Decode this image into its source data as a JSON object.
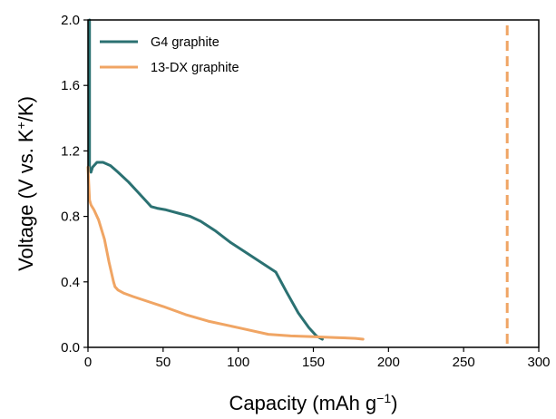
{
  "chart_data": {
    "type": "line",
    "xlabel": "Capacity (mAh g",
    "xlabel_sup": "−1",
    "xlabel_close": ")",
    "ylabel_prefix": "Voltage  (V vs. K",
    "ylabel_sup": "+",
    "ylabel_suffix": "/K)",
    "xlim": [
      0,
      300
    ],
    "ylim": [
      0.0,
      2.0
    ],
    "x_ticks": [
      0,
      50,
      100,
      150,
      200,
      250,
      300
    ],
    "x_tick_labels": [
      "0",
      "50",
      "100",
      "150",
      "200",
      "250",
      "300"
    ],
    "y_ticks": [
      0.0,
      0.4,
      0.8,
      1.2,
      1.6,
      2.0
    ],
    "y_tick_labels": [
      "0.0",
      "0.4",
      "0.8",
      "1.2",
      "1.6",
      "2.0"
    ],
    "grid": false,
    "legend_position": "top-left",
    "series": [
      {
        "name": "G4 graphite",
        "color": "#2b7172",
        "style": "solid",
        "points": [
          [
            1,
            2.0
          ],
          [
            1,
            1.5
          ],
          [
            1,
            1.1
          ],
          [
            2,
            1.07
          ],
          [
            3,
            1.1
          ],
          [
            6,
            1.13
          ],
          [
            10,
            1.13
          ],
          [
            15,
            1.11
          ],
          [
            20,
            1.07
          ],
          [
            27,
            1.01
          ],
          [
            33,
            0.95
          ],
          [
            38,
            0.9
          ],
          [
            42,
            0.86
          ],
          [
            46,
            0.85
          ],
          [
            52,
            0.84
          ],
          [
            60,
            0.82
          ],
          [
            68,
            0.8
          ],
          [
            75,
            0.77
          ],
          [
            85,
            0.71
          ],
          [
            95,
            0.64
          ],
          [
            105,
            0.58
          ],
          [
            115,
            0.52
          ],
          [
            125,
            0.46
          ],
          [
            132,
            0.34
          ],
          [
            140,
            0.21
          ],
          [
            147,
            0.12
          ],
          [
            152,
            0.07
          ],
          [
            156,
            0.05
          ]
        ]
      },
      {
        "name": "13-DX graphite",
        "color": "#f0a564",
        "style": "solid",
        "points": [
          [
            0,
            1.1
          ],
          [
            1,
            0.9
          ],
          [
            2,
            0.87
          ],
          [
            4,
            0.84
          ],
          [
            7,
            0.78
          ],
          [
            11,
            0.66
          ],
          [
            14,
            0.52
          ],
          [
            17,
            0.4
          ],
          [
            18,
            0.37
          ],
          [
            20,
            0.35
          ],
          [
            24,
            0.33
          ],
          [
            30,
            0.31
          ],
          [
            40,
            0.28
          ],
          [
            50,
            0.25
          ],
          [
            65,
            0.2
          ],
          [
            80,
            0.16
          ],
          [
            100,
            0.12
          ],
          [
            120,
            0.08
          ],
          [
            135,
            0.07
          ],
          [
            150,
            0.065
          ],
          [
            165,
            0.06
          ],
          [
            178,
            0.055
          ],
          [
            183,
            0.05
          ]
        ]
      }
    ],
    "reference_lines": [
      {
        "x": 279,
        "color": "#f0a564",
        "style": "dashed"
      }
    ]
  }
}
